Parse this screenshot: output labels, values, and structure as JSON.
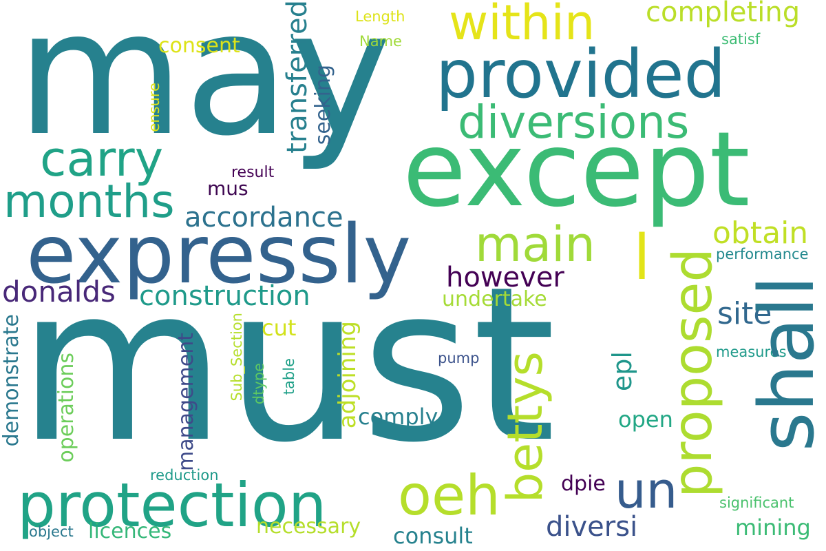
{
  "words": [
    {
      "text": "may",
      "color": "#26818e"
    },
    {
      "text": "must",
      "color": "#26828e"
    },
    {
      "text": "except",
      "color": "#3bbb75"
    },
    {
      "text": "expressly",
      "color": "#33628d"
    },
    {
      "text": "provided",
      "color": "#21748e"
    },
    {
      "text": "protection",
      "color": "#20a386"
    },
    {
      "text": "diversions",
      "color": "#3bbb75"
    },
    {
      "text": "carry",
      "color": "#20a386"
    },
    {
      "text": "months",
      "color": "#1f9e89"
    },
    {
      "text": "within",
      "color": "#e5e419"
    },
    {
      "text": "shall",
      "color": "#2a788e"
    },
    {
      "text": "proposed",
      "color": "#addc30"
    },
    {
      "text": "oeh",
      "color": "#b5de2b"
    },
    {
      "text": "un",
      "color": "#365c8d"
    },
    {
      "text": "bettys",
      "color": "#b5de2b"
    },
    {
      "text": "main",
      "color": "#a0da39"
    },
    {
      "text": "l",
      "color": "#e2e418"
    },
    {
      "text": "completing",
      "color": "#bade28"
    },
    {
      "text": "transferred",
      "color": "#27808e"
    },
    {
      "text": "accordance",
      "color": "#2c728e"
    },
    {
      "text": "construction",
      "color": "#1f9a8a"
    },
    {
      "text": "donalds",
      "color": "#482878"
    },
    {
      "text": "however",
      "color": "#440154"
    },
    {
      "text": "obtain",
      "color": "#c0df25"
    },
    {
      "text": "site",
      "color": "#31688e"
    },
    {
      "text": "undertake",
      "color": "#a5db36"
    },
    {
      "text": "seeking",
      "color": "#33638d"
    },
    {
      "text": "management",
      "color": "#3e4a89"
    },
    {
      "text": "demonstrate",
      "color": "#2a788e"
    },
    {
      "text": "operations",
      "color": "#6ccd5a"
    },
    {
      "text": "adjoining",
      "color": "#bddf26"
    },
    {
      "text": "epl",
      "color": "#1f968b"
    },
    {
      "text": "comply",
      "color": "#27808e"
    },
    {
      "text": "open",
      "color": "#22a785"
    },
    {
      "text": "cut",
      "color": "#d2e21b"
    },
    {
      "text": "consent",
      "color": "#dde318"
    },
    {
      "text": "mus",
      "color": "#3e0751"
    },
    {
      "text": "result",
      "color": "#440154"
    },
    {
      "text": "dpie",
      "color": "#440154"
    },
    {
      "text": "diversi",
      "color": "#3b528b"
    },
    {
      "text": "licences",
      "color": "#35b779"
    },
    {
      "text": "necessary",
      "color": "#b5de2b"
    },
    {
      "text": "consult",
      "color": "#26828e"
    },
    {
      "text": "mining",
      "color": "#3bbb75"
    },
    {
      "text": "performance",
      "color": "#23898e"
    },
    {
      "text": "measures",
      "color": "#1f9a8a"
    },
    {
      "text": "significant",
      "color": "#4ac16d"
    },
    {
      "text": "reduction",
      "color": "#1f9a8a"
    },
    {
      "text": "object",
      "color": "#2a788e"
    },
    {
      "text": "pump",
      "color": "#3b528b"
    },
    {
      "text": "Sub_Section",
      "color": "#b5de2b"
    },
    {
      "text": "dtype",
      "color": "#5ec962"
    },
    {
      "text": "table",
      "color": "#1fa088"
    },
    {
      "text": "ensure",
      "color": "#dde318"
    },
    {
      "text": "Length",
      "color": "#dde318"
    },
    {
      "text": "Name",
      "color": "#a0da39"
    },
    {
      "text": "satisf",
      "color": "#3dbc74"
    }
  ]
}
